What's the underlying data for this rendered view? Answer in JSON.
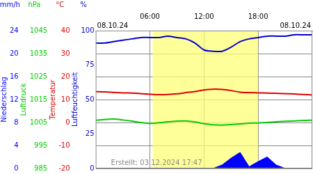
{
  "chart_data": {
    "type": "line",
    "title_left": "08.10.24",
    "title_right": "08.10.24",
    "annotation": "Erstellt: 03.12.2024 17:47",
    "x": [
      0,
      1,
      2,
      3,
      4,
      5,
      6,
      7,
      8,
      9,
      10,
      11,
      12,
      13,
      14,
      15,
      16,
      17,
      18,
      19,
      20,
      21,
      22,
      23,
      24
    ],
    "xlim": [
      0,
      24
    ],
    "xticks": [
      {
        "value": 6,
        "label": "06:00"
      },
      {
        "value": 12,
        "label": "12:00"
      },
      {
        "value": 18,
        "label": "18:00"
      }
    ],
    "daylight": [
      6.3,
      18
    ],
    "grid": true,
    "series": [
      {
        "name": "Luftfeuchtigkeit",
        "unit": "%",
        "color": "#0000cc",
        "axis": "y",
        "ylim": [
          0,
          100
        ],
        "yticks": [
          0,
          25,
          50,
          75,
          100
        ],
        "values": [
          91,
          91,
          92,
          93,
          94,
          95,
          95,
          95,
          96,
          95,
          94,
          91,
          86,
          85,
          85,
          88,
          92,
          94,
          95,
          96,
          96,
          96,
          97,
          97,
          97
        ]
      },
      {
        "name": "Temperatur",
        "unit": "°C",
        "color": "#dd0000",
        "axis": "y2",
        "ylim": [
          -20,
          40
        ],
        "yticks": [
          -20,
          -10,
          0,
          10,
          20,
          30,
          40
        ],
        "values": [
          13.4,
          13.3,
          13.1,
          12.9,
          12.8,
          12.6,
          12.3,
          12.1,
          12.2,
          12.5,
          13.0,
          13.5,
          14.2,
          14.5,
          14.4,
          13.9,
          13.2,
          13.0,
          12.9,
          12.8,
          12.7,
          12.6,
          12.4,
          12.2,
          12.0
        ]
      },
      {
        "name": "Luftdruck",
        "unit": "hPa",
        "color": "#00cc00",
        "axis": "y3",
        "ylim": [
          985,
          1045
        ],
        "yticks": [
          985,
          995,
          1005,
          1015,
          1025,
          1035,
          1045
        ],
        "values": [
          1006.0,
          1006.3,
          1006.5,
          1006.1,
          1005.6,
          1005.0,
          1004.6,
          1004.9,
          1005.3,
          1005.6,
          1005.7,
          1005.2,
          1004.5,
          1004.0,
          1003.9,
          1004.1,
          1004.4,
          1004.7,
          1004.8,
          1005.0,
          1005.3,
          1005.5,
          1005.7,
          1005.9,
          1006.0
        ]
      },
      {
        "name": "Niederschlag",
        "unit": "mm/h",
        "color": "#0000ff",
        "axis": "y4",
        "type": "area",
        "ylim": [
          0,
          24
        ],
        "yticks": [
          0,
          4,
          8,
          12,
          16,
          20,
          24
        ],
        "values": [
          0,
          0,
          0,
          0,
          0,
          0,
          0,
          0,
          0,
          0,
          0,
          0,
          0,
          0,
          0.6,
          1.8,
          2.8,
          0.3,
          1.2,
          2.0,
          0.6,
          0,
          0,
          0,
          0
        ]
      }
    ]
  }
}
